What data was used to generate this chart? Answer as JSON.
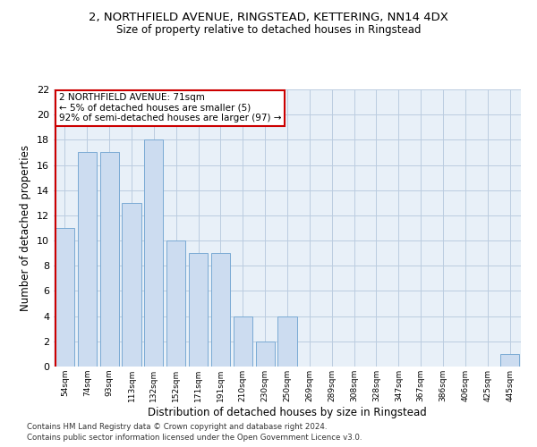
{
  "title1": "2, NORTHFIELD AVENUE, RINGSTEAD, KETTERING, NN14 4DX",
  "title2": "Size of property relative to detached houses in Ringstead",
  "xlabel": "Distribution of detached houses by size in Ringstead",
  "ylabel": "Number of detached properties",
  "categories": [
    "54sqm",
    "74sqm",
    "93sqm",
    "113sqm",
    "132sqm",
    "152sqm",
    "171sqm",
    "191sqm",
    "210sqm",
    "230sqm",
    "250sqm",
    "269sqm",
    "289sqm",
    "308sqm",
    "328sqm",
    "347sqm",
    "367sqm",
    "386sqm",
    "406sqm",
    "425sqm",
    "445sqm"
  ],
  "values": [
    11,
    17,
    17,
    13,
    18,
    10,
    9,
    9,
    4,
    2,
    4,
    0,
    0,
    0,
    0,
    0,
    0,
    0,
    0,
    0,
    1
  ],
  "bar_color": "#ccdcf0",
  "bar_edge_color": "#7aaad4",
  "grid_color": "#bbcce0",
  "highlight_line_color": "#cc0000",
  "annotation_text": "2 NORTHFIELD AVENUE: 71sqm\n← 5% of detached houses are smaller (5)\n92% of semi-detached houses are larger (97) →",
  "annotation_box_color": "#ffffff",
  "annotation_box_edge_color": "#cc0000",
  "ylim": [
    0,
    22
  ],
  "yticks": [
    0,
    2,
    4,
    6,
    8,
    10,
    12,
    14,
    16,
    18,
    20,
    22
  ],
  "footer1": "Contains HM Land Registry data © Crown copyright and database right 2024.",
  "footer2": "Contains public sector information licensed under the Open Government Licence v3.0.",
  "bg_color": "#e8f0f8"
}
